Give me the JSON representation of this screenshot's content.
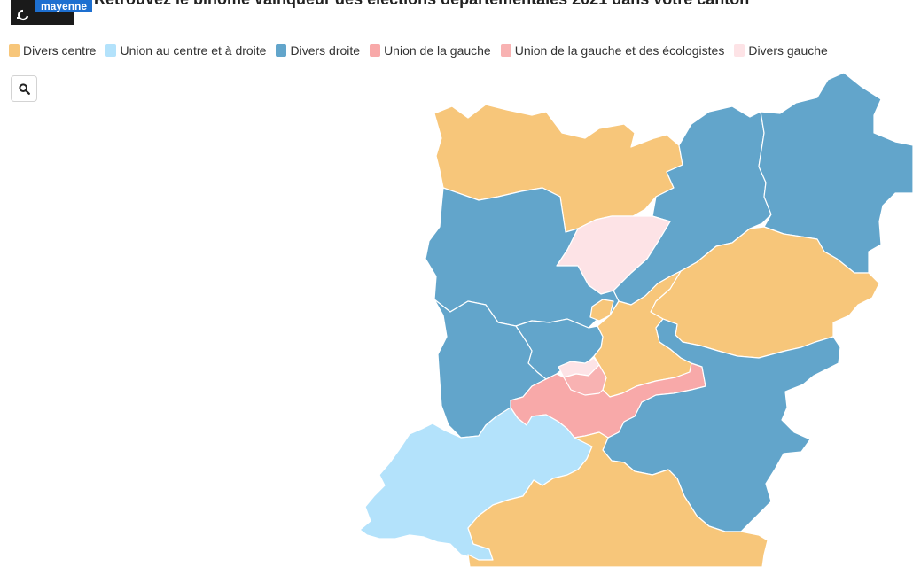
{
  "header": {
    "logo_text": "mayenne",
    "title": "Retrouvez le binôme vainqueur des élections départementales 2021 dans votre canton"
  },
  "legend": [
    {
      "label": "Divers centre",
      "color": "#f7c67a"
    },
    {
      "label": "Union au centre et à droite",
      "color": "#b3e2fb"
    },
    {
      "label": "Divers droite",
      "color": "#62a5cb"
    },
    {
      "label": "Union de la gauche",
      "color": "#f8a9a9"
    },
    {
      "label": "Union de la gauche et des écologistes",
      "color": "#f8b2b2"
    },
    {
      "label": "Divers gauche",
      "color": "#fde3e6"
    }
  ],
  "search": {
    "icon": "search-icon"
  }
}
